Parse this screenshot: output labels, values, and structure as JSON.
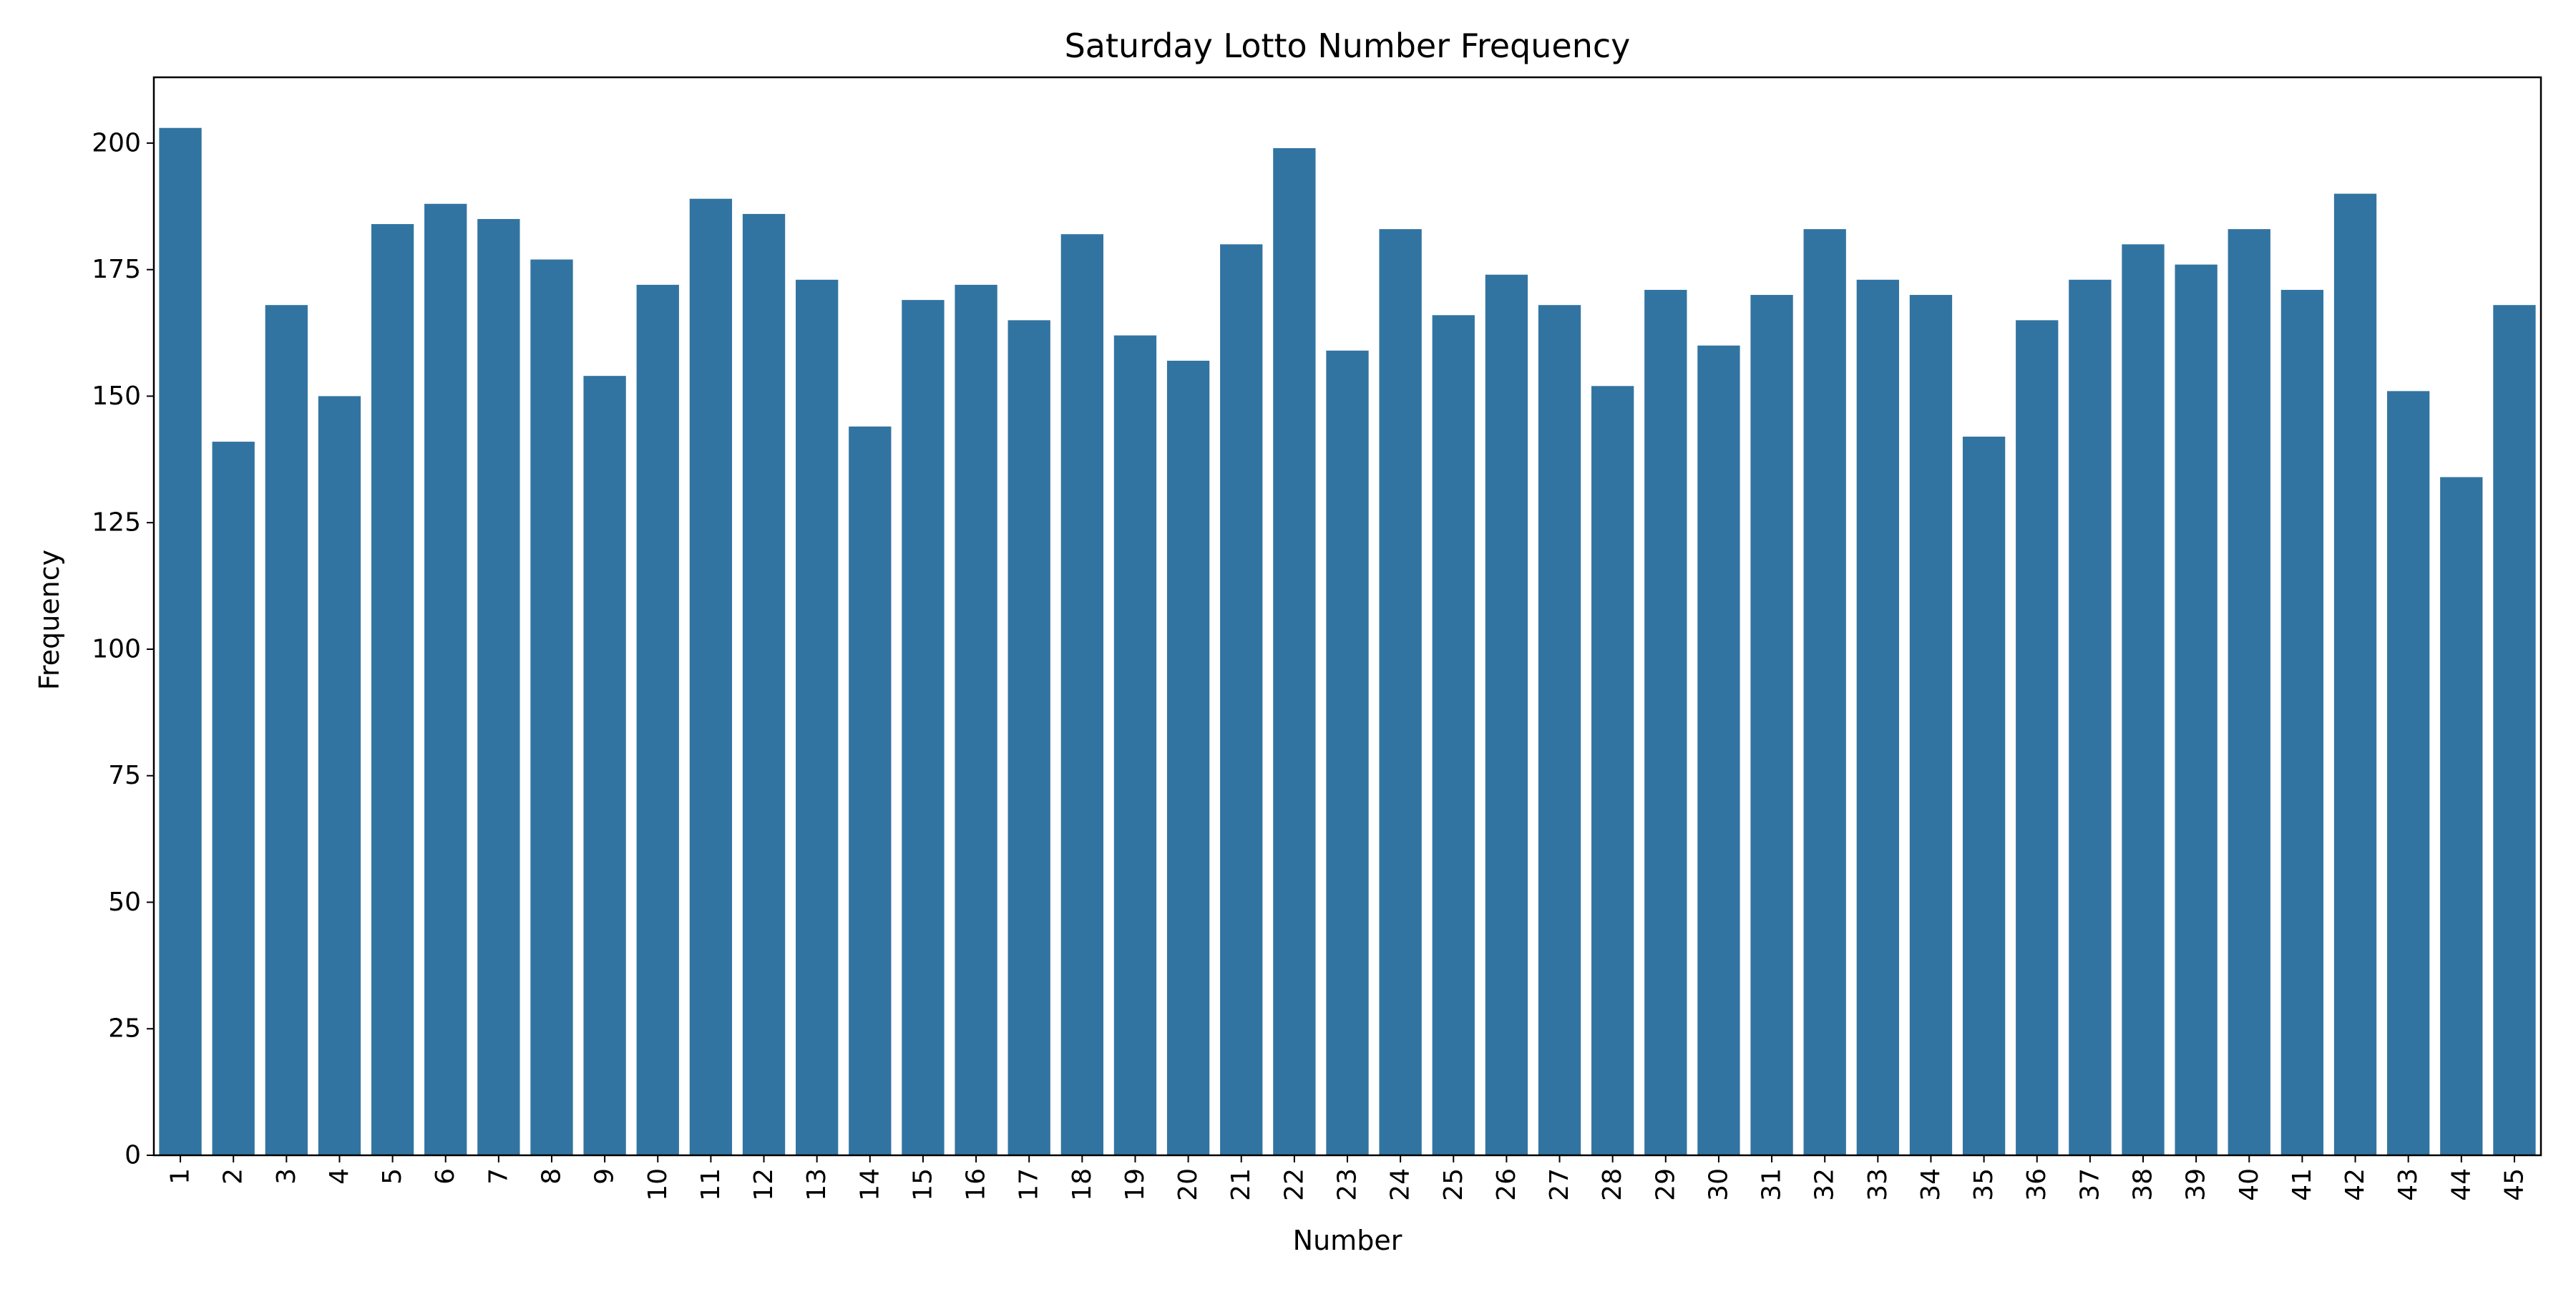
{
  "chart_data": {
    "type": "bar",
    "title": "Saturday Lotto Number Frequency",
    "xlabel": "Number",
    "ylabel": "Frequency",
    "ylim": [
      0,
      213
    ],
    "yticks": [
      0,
      25,
      50,
      75,
      100,
      125,
      150,
      175,
      200
    ],
    "grid": false,
    "legend": "none",
    "bar_color": "#3274a1",
    "categories": [
      "1",
      "2",
      "3",
      "4",
      "5",
      "6",
      "7",
      "8",
      "9",
      "10",
      "11",
      "12",
      "13",
      "14",
      "15",
      "16",
      "17",
      "18",
      "19",
      "20",
      "21",
      "22",
      "23",
      "24",
      "25",
      "26",
      "27",
      "28",
      "29",
      "30",
      "31",
      "32",
      "33",
      "34",
      "35",
      "36",
      "37",
      "38",
      "39",
      "40",
      "41",
      "42",
      "43",
      "44",
      "45"
    ],
    "values": [
      203,
      141,
      168,
      150,
      184,
      188,
      185,
      177,
      154,
      172,
      189,
      186,
      173,
      144,
      169,
      172,
      165,
      182,
      162,
      157,
      180,
      199,
      159,
      183,
      166,
      174,
      168,
      152,
      171,
      160,
      170,
      183,
      173,
      170,
      142,
      165,
      173,
      180,
      176,
      183,
      171,
      190,
      151,
      134,
      168
    ]
  }
}
